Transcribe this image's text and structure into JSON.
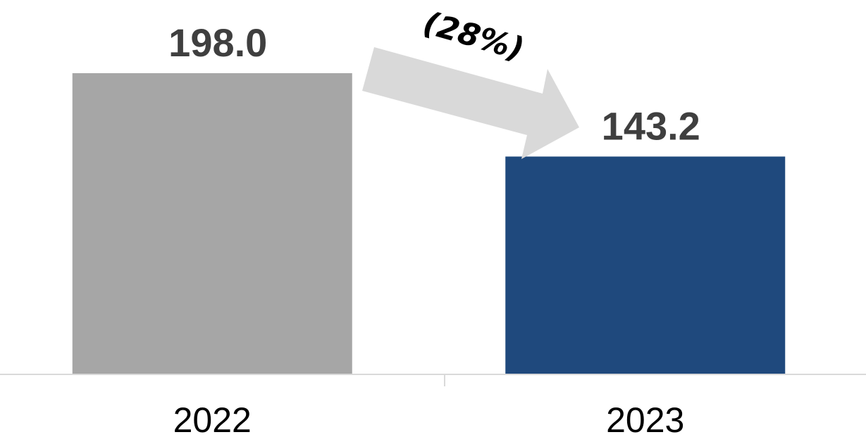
{
  "chart_data": {
    "type": "bar",
    "categories": [
      "2022",
      "2023"
    ],
    "values": [
      198.0,
      143.2
    ],
    "value_labels": [
      "198.0",
      "143.2"
    ],
    "colors": [
      "#a6a6a6",
      "#1f497d"
    ],
    "ylim": [
      0,
      198.0
    ],
    "grid": false,
    "legend": "none",
    "annotation": {
      "text": "(28%)",
      "arrow_color": "#d9d9d9",
      "direction": "down-right"
    }
  }
}
